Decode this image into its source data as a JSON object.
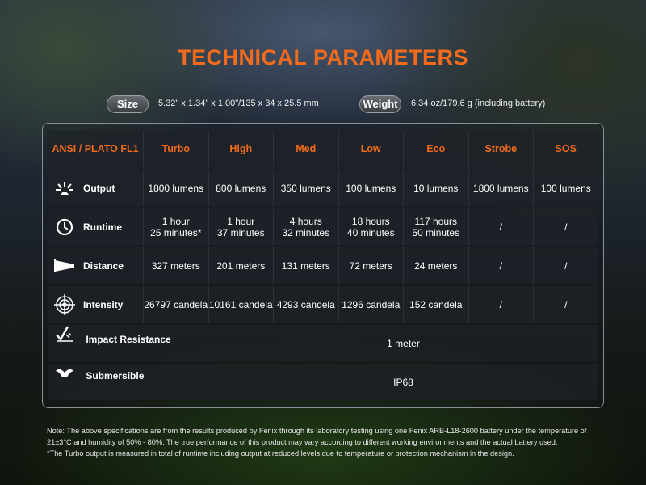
{
  "title": "TECHNICAL PARAMETERS",
  "size": {
    "label": "Size",
    "value": "5.32\" x 1.34\" x 1.00\"/135 x 34 x 25.5 mm"
  },
  "weight": {
    "label": "Weight",
    "value": "6.34 oz/179.6 g (including battery)"
  },
  "table": {
    "headers": [
      "ANSI / PLATO FL1",
      "Turbo",
      "High",
      "Med",
      "Low",
      "Eco",
      "Strobe",
      "SOS"
    ],
    "rows": [
      {
        "label": "Output",
        "icon": "light-burst-icon",
        "values": [
          "1800 lumens",
          "800 lumens",
          "350 lumens",
          "100 lumens",
          "10 lumens",
          "1800 lumens",
          "100 lumens"
        ]
      },
      {
        "label": "Runtime",
        "icon": "clock-icon",
        "values": [
          [
            "1 hour",
            "25 minutes*"
          ],
          [
            "1 hour",
            "37 minutes"
          ],
          [
            "4 hours",
            "32 minutes"
          ],
          [
            "18 hours",
            "40 minutes"
          ],
          [
            "117 hours",
            "50 minutes"
          ],
          [
            "/"
          ],
          [
            "/"
          ]
        ]
      },
      {
        "label": "Distance",
        "icon": "beam-distance-icon",
        "values": [
          "327 meters",
          "201 meters",
          "131 meters",
          "72 meters",
          "24 meters",
          "/",
          "/"
        ]
      },
      {
        "label": "Intensity",
        "icon": "target-icon",
        "values": [
          "26797 candela",
          "10161 candela",
          "4293 candela",
          "1296 candela",
          "152 candela",
          "/",
          "/"
        ]
      }
    ],
    "impact": {
      "label": "Impact Resistance",
      "icon": "impact-icon",
      "value": "1 meter"
    },
    "submersible": {
      "label": "Submersible",
      "icon": "water-icon",
      "value": "IP68"
    }
  },
  "notes": [
    "Note: The above specifications are from the results produced by Fenix through its laboratory testing using one Fenix ARB-L18-2600 battery under the temperature of 21±3°C and humidity of 50% - 80%. The true performance of this product may vary according to different working environments and the actual battery used.",
    "*The Turbo output is measured in total of runtime including output at reduced levels due to temperature or protection mechanism in the design."
  ],
  "colors": {
    "accent": "#f26a1b"
  }
}
